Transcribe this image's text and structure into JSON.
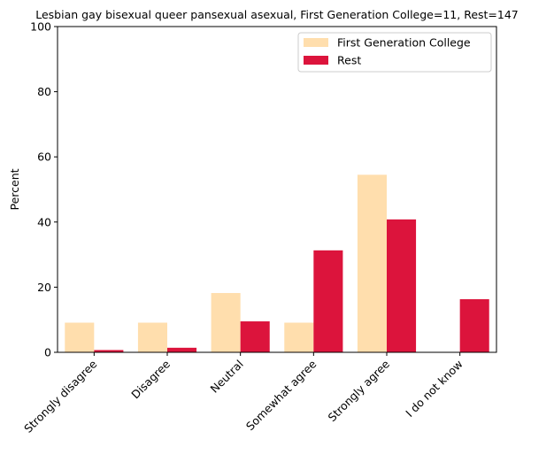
{
  "chart_data": {
    "type": "bar",
    "title": "Lesbian gay bisexual queer pansexual asexual, First Generation College=11, Rest=147",
    "xlabel": "",
    "ylabel": "Percent",
    "ylim": [
      0,
      100
    ],
    "yticks": [
      0,
      20,
      40,
      60,
      80,
      100
    ],
    "categories": [
      "Strongly disagree",
      "Disagree",
      "Neutral",
      "Somewhat agree",
      "Strongly agree",
      "I do not know"
    ],
    "series": [
      {
        "name": "First Generation College",
        "color": "#ffdead",
        "values": [
          9.1,
          9.1,
          18.2,
          9.1,
          54.5,
          0.0
        ]
      },
      {
        "name": "Rest",
        "color": "#dc143c",
        "values": [
          0.7,
          1.4,
          9.5,
          31.3,
          40.8,
          16.3
        ]
      }
    ],
    "legend_position": "top-right",
    "grid": false
  }
}
